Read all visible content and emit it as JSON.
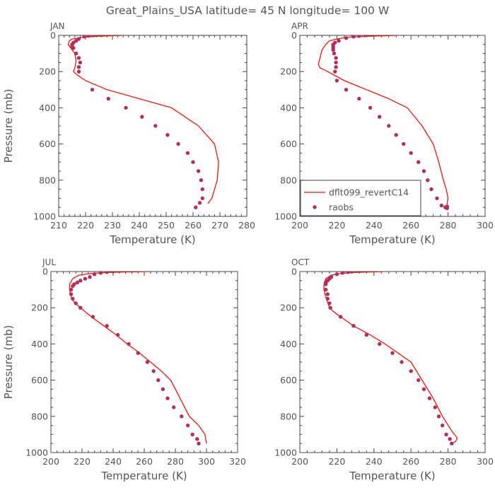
{
  "title": "Great_Plains_USA   latitude= 45 N longitude= 100 W",
  "legend": {
    "model_label": "dflt099_revertC14",
    "obs_label": "raobs"
  },
  "colors": {
    "model_line": "#e8190e",
    "obs_marker": "#b0305a",
    "axis": "#444444",
    "text": "#555555"
  },
  "chart_data": [
    {
      "type": "line",
      "panel": "JAN",
      "title": "JAN",
      "xlabel": "Temperature (K)",
      "ylabel": "Pressure (mb)",
      "xlim": [
        210,
        280
      ],
      "ylim": [
        1000,
        0
      ],
      "xticks": [
        210,
        220,
        230,
        240,
        250,
        260,
        270,
        280
      ],
      "yticks": [
        0,
        200,
        400,
        600,
        800,
        1000
      ],
      "grid": false,
      "legend_position": "none",
      "series": [
        {
          "name": "dflt099_revertC14",
          "kind": "line",
          "x": [
            234,
            224,
            219,
            215,
            214,
            213.5,
            214.5,
            216,
            216.5,
            216,
            215.5,
            217,
            220,
            228,
            240,
            252,
            262,
            268,
            269.5,
            269,
            267,
            265.5
          ],
          "y": [
            0,
            5,
            10,
            20,
            30,
            50,
            70,
            100,
            140,
            180,
            200,
            220,
            250,
            300,
            350,
            400,
            500,
            600,
            700,
            800,
            900,
            930
          ]
        },
        {
          "name": "raobs",
          "kind": "scatter",
          "x": [
            223,
            221,
            219.5,
            217.5,
            216.5,
            215.5,
            215,
            215,
            215.5,
            216.5,
            217.5,
            218,
            217.5,
            217.5,
            222.5,
            228.5,
            235,
            241,
            246,
            250.5,
            254.5,
            258,
            260,
            262,
            263,
            263.5,
            263.5,
            262.5,
            261
          ],
          "y": [
            0,
            3,
            7,
            20,
            30,
            40,
            50,
            60,
            70,
            100,
            125,
            150,
            175,
            200,
            300,
            350,
            400,
            450,
            500,
            550,
            600,
            650,
            700,
            750,
            800,
            850,
            900,
            925,
            950
          ]
        }
      ]
    },
    {
      "type": "line",
      "panel": "APR",
      "title": "APR",
      "xlabel": "Temperature (K)",
      "ylabel": "",
      "xlim": [
        200,
        300
      ],
      "ylim": [
        1000,
        0
      ],
      "xticks": [
        200,
        220,
        240,
        260,
        280,
        300
      ],
      "yticks": [
        0,
        200,
        400,
        600,
        800,
        1000
      ],
      "grid": false,
      "legend_position": "bottom-left",
      "series": [
        {
          "name": "dflt099_revertC14",
          "kind": "line",
          "x": [
            253,
            236,
            226,
            220,
            216,
            214,
            212,
            211,
            210,
            211,
            215,
            224,
            236,
            248,
            258,
            266,
            272,
            275,
            277.5,
            279,
            280,
            279.5,
            279
          ],
          "y": [
            0,
            5,
            10,
            20,
            30,
            50,
            80,
            120,
            160,
            180,
            200,
            250,
            300,
            350,
            400,
            500,
            600,
            700,
            800,
            850,
            900,
            930,
            950
          ]
        },
        {
          "name": "raobs",
          "kind": "scatter",
          "x": [
            235,
            232,
            229,
            225,
            221,
            219,
            218,
            218,
            218,
            218,
            218.5,
            219.5,
            219.5,
            219.5,
            219,
            220,
            225,
            232,
            238,
            243,
            248,
            252,
            256,
            260,
            264,
            267,
            269,
            271,
            274,
            276.5,
            278.5,
            279.5,
            279.5
          ],
          "y": [
            0,
            3,
            7,
            15,
            30,
            40,
            50,
            60,
            70,
            80,
            100,
            125,
            150,
            175,
            200,
            250,
            300,
            350,
            400,
            450,
            500,
            550,
            600,
            650,
            700,
            750,
            800,
            850,
            900,
            940,
            950,
            945,
            955
          ]
        }
      ]
    },
    {
      "type": "line",
      "panel": "JUL",
      "title": "JUL",
      "xlabel": "Temperature (K)",
      "ylabel": "Pressure (mb)",
      "xlim": [
        200,
        320
      ],
      "ylim": [
        1000,
        0
      ],
      "xticks": [
        200,
        220,
        240,
        260,
        280,
        300,
        320
      ],
      "yticks": [
        0,
        200,
        400,
        600,
        800,
        1000
      ],
      "grid": false,
      "legend_position": "none",
      "series": [
        {
          "name": "dflt099_revertC14",
          "kind": "line",
          "x": [
            263,
            250,
            236,
            226,
            218,
            214,
            212,
            212,
            213,
            215,
            219,
            226,
            234,
            242,
            249,
            257,
            264,
            271,
            277,
            283,
            289,
            295,
            299,
            300
          ],
          "y": [
            0,
            2,
            5,
            10,
            20,
            40,
            70,
            100,
            140,
            170,
            200,
            250,
            300,
            350,
            400,
            450,
            500,
            550,
            600,
            700,
            800,
            850,
            900,
            950
          ]
        },
        {
          "name": "raobs",
          "kind": "scatter",
          "x": [
            240,
            236,
            232,
            228,
            225,
            222,
            219,
            217,
            215,
            214,
            213,
            213,
            214,
            216,
            219,
            227,
            236,
            243,
            250,
            256,
            262,
            266,
            269,
            272,
            275,
            279,
            284,
            288,
            291,
            294,
            295
          ],
          "y": [
            0,
            3,
            7,
            15,
            30,
            40,
            50,
            60,
            70,
            80,
            100,
            125,
            150,
            175,
            200,
            250,
            300,
            350,
            400,
            450,
            500,
            550,
            600,
            650,
            700,
            750,
            800,
            850,
            900,
            925,
            950
          ]
        }
      ]
    },
    {
      "type": "line",
      "panel": "OCT",
      "title": "OCT",
      "xlabel": "Temperature (K)",
      "ylabel": "",
      "xlim": [
        200,
        300
      ],
      "ylim": [
        1000,
        0
      ],
      "xticks": [
        200,
        220,
        240,
        260,
        280,
        300
      ],
      "yticks": [
        0,
        200,
        400,
        600,
        800,
        1000
      ],
      "grid": false,
      "legend_position": "none",
      "series": [
        {
          "name": "dflt099_revertC14",
          "kind": "line",
          "x": [
            245,
            230,
            222,
            217,
            214,
            213,
            213,
            214,
            215,
            216,
            218,
            222,
            229,
            238,
            246,
            253,
            260,
            266,
            272,
            277,
            282,
            285,
            284,
            282
          ],
          "y": [
            0,
            5,
            10,
            20,
            40,
            70,
            100,
            140,
            170,
            200,
            220,
            250,
            300,
            350,
            400,
            450,
            500,
            600,
            700,
            800,
            880,
            920,
            940,
            950
          ]
        },
        {
          "name": "raobs",
          "kind": "scatter",
          "x": [
            228,
            226,
            223,
            220,
            217,
            216,
            215,
            214,
            214,
            214,
            215,
            215,
            216,
            216.5,
            222,
            229,
            236,
            243,
            250,
            255,
            260,
            264,
            267,
            270,
            273,
            275,
            277,
            279,
            281,
            282
          ],
          "y": [
            0,
            3,
            7,
            15,
            30,
            40,
            50,
            60,
            70,
            100,
            125,
            150,
            175,
            200,
            250,
            300,
            350,
            400,
            450,
            500,
            550,
            600,
            650,
            700,
            750,
            800,
            850,
            900,
            925,
            950
          ]
        }
      ]
    }
  ]
}
